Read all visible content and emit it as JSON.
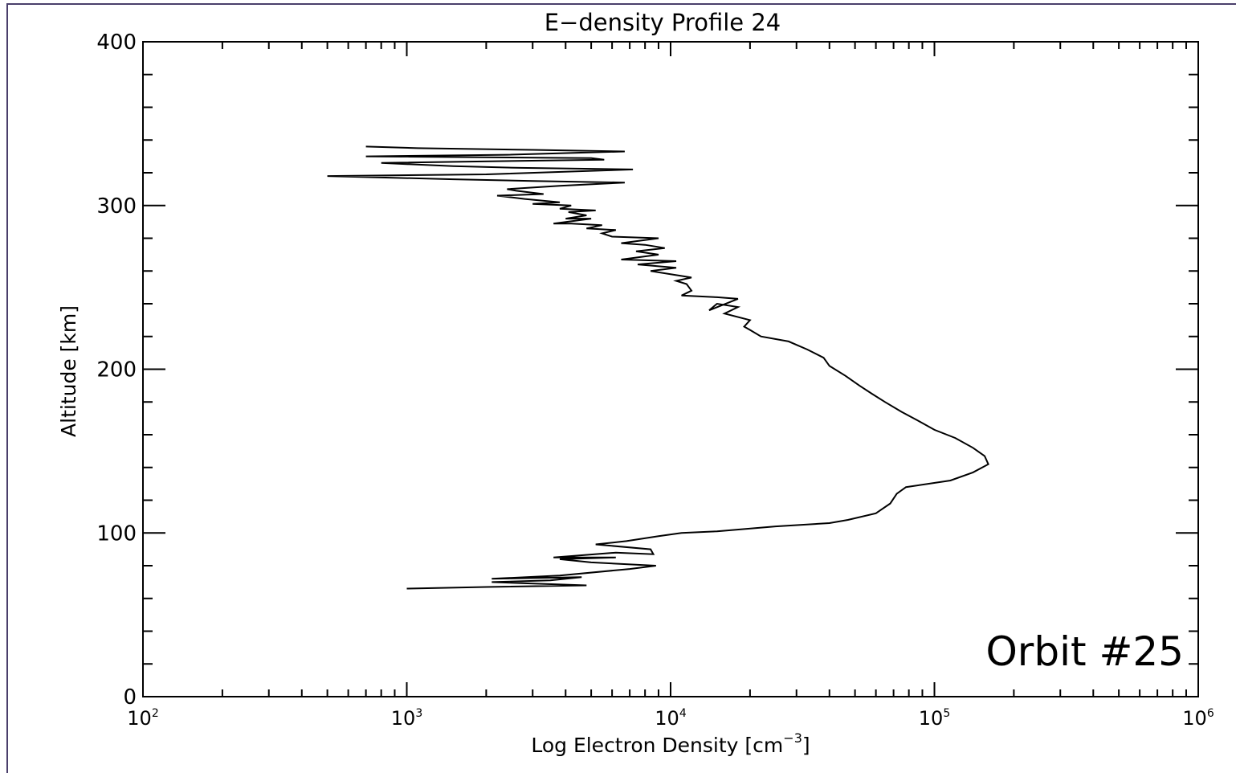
{
  "chart_data": {
    "type": "line",
    "title": "E−density Profile 24",
    "xlabel": "Log Electron Density [cm",
    "xlabel_sup": "−3",
    "xlabel_end": "]",
    "ylabel": "Altitude [km]",
    "xscale": "log",
    "xlim": [
      100,
      1000000
    ],
    "ylim": [
      0,
      400
    ],
    "x_ticks": [
      {
        "base": "10",
        "exp": "2"
      },
      {
        "base": "10",
        "exp": "3"
      },
      {
        "base": "10",
        "exp": "4"
      },
      {
        "base": "10",
        "exp": "5"
      },
      {
        "base": "10",
        "exp": "6"
      }
    ],
    "y_ticks": [
      "0",
      "100",
      "200",
      "300",
      "400"
    ],
    "annotation": "Orbit #25",
    "series": [
      {
        "color": "#000000",
        "points": [
          [
            1000,
            66
          ],
          [
            2000,
            67
          ],
          [
            4800,
            68
          ],
          [
            2100,
            70
          ],
          [
            3500,
            71
          ],
          [
            4600,
            73
          ],
          [
            2100,
            72
          ],
          [
            3800,
            74
          ],
          [
            7000,
            78
          ],
          [
            8800,
            80
          ],
          [
            5000,
            82
          ],
          [
            3800,
            84
          ],
          [
            6200,
            85
          ],
          [
            3600,
            85
          ],
          [
            6200,
            88
          ],
          [
            8600,
            87
          ],
          [
            8400,
            90
          ],
          [
            5200,
            93
          ],
          [
            6800,
            95
          ],
          [
            9000,
            98
          ],
          [
            11000,
            100
          ],
          [
            15000,
            101
          ],
          [
            25000,
            104
          ],
          [
            40000,
            106
          ],
          [
            47000,
            108
          ],
          [
            60000,
            112
          ],
          [
            68000,
            118
          ],
          [
            72000,
            124
          ],
          [
            78000,
            128
          ],
          [
            115000,
            132
          ],
          [
            140000,
            137
          ],
          [
            160000,
            142
          ],
          [
            155000,
            147
          ],
          [
            140000,
            152
          ],
          [
            120000,
            158
          ],
          [
            100000,
            163
          ],
          [
            88000,
            168
          ],
          [
            75000,
            174
          ],
          [
            65000,
            180
          ],
          [
            58000,
            185
          ],
          [
            52000,
            190
          ],
          [
            46000,
            196
          ],
          [
            40000,
            202
          ],
          [
            38000,
            207
          ],
          [
            33000,
            212
          ],
          [
            28000,
            217
          ],
          [
            22000,
            220
          ],
          [
            20000,
            224
          ],
          [
            19000,
            226
          ],
          [
            20000,
            230
          ],
          [
            16000,
            234
          ],
          [
            18000,
            238
          ],
          [
            15000,
            240
          ],
          [
            14000,
            236
          ],
          [
            18000,
            243
          ],
          [
            15000,
            244
          ],
          [
            11000,
            245
          ],
          [
            12000,
            248
          ],
          [
            11500,
            252
          ],
          [
            10500,
            254
          ],
          [
            12000,
            256
          ],
          [
            10000,
            258
          ],
          [
            8400,
            260
          ],
          [
            10500,
            262
          ],
          [
            7500,
            264
          ],
          [
            10500,
            266
          ],
          [
            6500,
            267
          ],
          [
            9000,
            270
          ],
          [
            7400,
            272
          ],
          [
            9500,
            274
          ],
          [
            8000,
            276
          ],
          [
            6500,
            277
          ],
          [
            9000,
            280
          ],
          [
            6000,
            281
          ],
          [
            5500,
            283
          ],
          [
            6200,
            285
          ],
          [
            4800,
            286
          ],
          [
            5500,
            288
          ],
          [
            4200,
            289
          ],
          [
            3600,
            289
          ],
          [
            5000,
            292
          ],
          [
            4000,
            292
          ],
          [
            4800,
            294
          ],
          [
            4100,
            296
          ],
          [
            5200,
            297
          ],
          [
            3800,
            298
          ],
          [
            4200,
            300
          ],
          [
            3000,
            301
          ],
          [
            3800,
            302
          ],
          [
            2800,
            304
          ],
          [
            2200,
            306
          ],
          [
            3300,
            307
          ],
          [
            2600,
            309
          ],
          [
            2400,
            310
          ],
          [
            3800,
            312
          ],
          [
            6700,
            314
          ],
          [
            3000,
            315
          ],
          [
            1500,
            316
          ],
          [
            500,
            318
          ],
          [
            2000,
            319
          ],
          [
            7200,
            322
          ],
          [
            2700,
            323
          ],
          [
            1500,
            324
          ],
          [
            800,
            326
          ],
          [
            5600,
            328
          ],
          [
            5000,
            329
          ],
          [
            700,
            330
          ],
          [
            2400,
            331
          ],
          [
            6700,
            333
          ],
          [
            3000,
            334
          ],
          [
            1100,
            335
          ],
          [
            700,
            336
          ]
        ]
      }
    ]
  }
}
